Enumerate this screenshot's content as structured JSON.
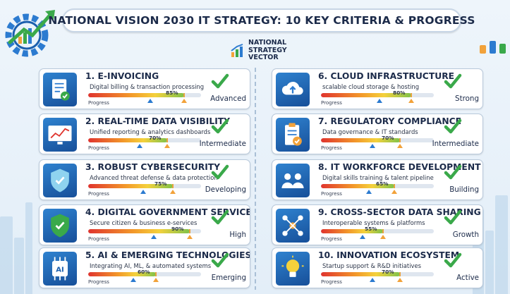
{
  "header": {
    "title": "NATIONAL VISION 2030 IT STRATEGY: 10 KEY CRITERIA & PROGRESS",
    "subtitle_lines": [
      "NATIONAL",
      "STRATEGY",
      "VECTOR"
    ]
  },
  "progress_label": "Progress",
  "colors": {
    "accent": "#2f82cf",
    "check": "#3aa94a",
    "title": "#1c2b4a"
  },
  "cards": [
    {
      "heading": "1. E-INVOICING",
      "description": "Digital billing & transaction processing",
      "progress_text": "85%",
      "progress": 0.85,
      "status": "Advanced",
      "icon": "invoice-icon"
    },
    {
      "heading": "2. REAL-TIME DATA VISIBILITY",
      "description": "Unified reporting & analytics dashboards",
      "progress_text": "70%",
      "progress": 0.7,
      "status": "Intermediate",
      "icon": "dashboard-icon"
    },
    {
      "heading": "3. ROBUST CYBERSECURITY",
      "description": "Advanced threat defense & data protection",
      "progress_text": "75%",
      "progress": 0.75,
      "status": "Developing",
      "icon": "shield-icon"
    },
    {
      "heading": "4. DIGITAL GOVERNMENT SERVICES",
      "description": "Secure citizen & business e-services",
      "progress_text": "90%",
      "progress": 0.9,
      "status": "High",
      "icon": "secure-shield-icon"
    },
    {
      "heading": "5. AI & EMERGING TECHNOLOGIES",
      "description": "Integrating AI, ML, & automated systems",
      "progress_text": "60%",
      "progress": 0.6,
      "status": "Emerging",
      "icon": "ai-chip-icon"
    },
    {
      "heading": "6. CLOUD INFRASTRUCTURE",
      "description": "scalable cloud storage & hosting",
      "progress_text": "80%",
      "progress": 0.8,
      "status": "Strong",
      "icon": "cloud-icon"
    },
    {
      "heading": "7. REGULATORY COMPLIANCE",
      "description": "Data governance & IT standards",
      "progress_text": "70%",
      "progress": 0.7,
      "status": "Intermediate",
      "icon": "clipboard-icon"
    },
    {
      "heading": "8. IT WORKFORCE DEVELOPMENT",
      "description": "Digital skills training & talent pipeline",
      "progress_text": "65%",
      "progress": 0.65,
      "status": "Building",
      "icon": "people-icon"
    },
    {
      "heading": "9. CROSS-SECTOR DATA SHARING",
      "description": "Interoperable systems & platforms",
      "progress_text": "55%",
      "progress": 0.55,
      "status": "Growth",
      "icon": "network-icon"
    },
    {
      "heading": "10. INNOVATION ECOSYSTEM",
      "description": "Startup support & R&D initiatives",
      "progress_text": "70%",
      "progress": 0.7,
      "status": "Active",
      "icon": "lightbulb-icon"
    }
  ]
}
